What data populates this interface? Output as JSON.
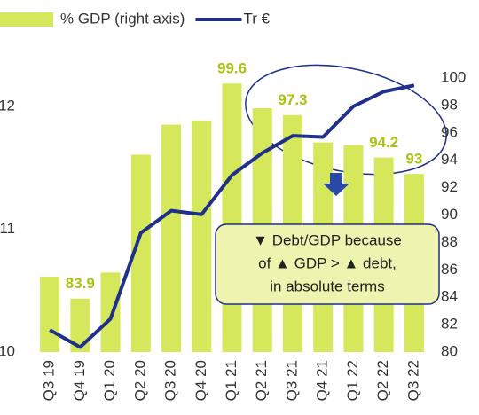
{
  "chart_data": {
    "type": "bar-line",
    "categories": [
      "Q3 19",
      "Q4 19",
      "Q1 20",
      "Q2 20",
      "Q3 20",
      "Q4 20",
      "Q1 21",
      "Q2 21",
      "Q3 21",
      "Q4 21",
      "Q1 22",
      "Q2 22",
      "Q3 22"
    ],
    "series": [
      {
        "name": "% GDP (right axis)",
        "color": "#d5e85c",
        "kind": "bar",
        "axis": "y2",
        "values": [
          85.5,
          83.9,
          85.8,
          94.4,
          96.6,
          96.9,
          99.6,
          97.8,
          97.3,
          95.3,
          95.1,
          94.2,
          93
        ],
        "value_labels": [
          null,
          "83.9",
          null,
          null,
          null,
          null,
          "99.6",
          null,
          "97.3",
          null,
          null,
          "94.2",
          "93"
        ]
      },
      {
        "name": "Tr €",
        "color": "#1f2f8a",
        "kind": "line",
        "values": [
          10.18,
          10.04,
          10.27,
          10.97,
          11.15,
          11.12,
          11.44,
          11.62,
          11.76,
          11.75,
          12.0,
          12.12,
          12.17
        ]
      }
    ],
    "ylim": [
      10,
      12.23
    ],
    "yticks": [
      10,
      11,
      12
    ],
    "y2lim": [
      80,
      100
    ],
    "y2ticks": [
      80,
      82,
      84,
      86,
      88,
      90,
      92,
      94,
      96,
      98,
      100
    ],
    "annotation": [
      "▼ Debt/GDP because",
      "of ▲ GDP > ▲ debt,",
      "in absolute terms"
    ]
  }
}
